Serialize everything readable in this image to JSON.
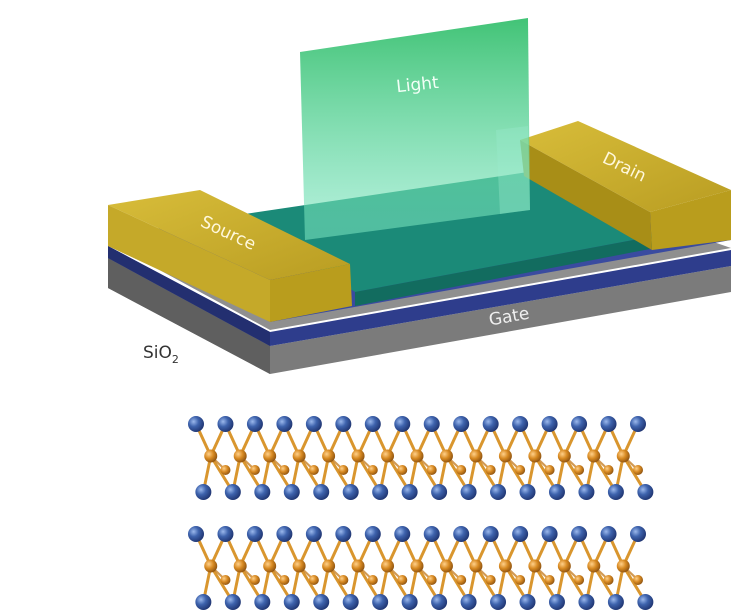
{
  "device": {
    "labels": {
      "light": "Light",
      "drain": "Drain",
      "source": "Source",
      "gate": "Gate",
      "substrate_main": "SiO",
      "substrate_sub": "2"
    },
    "colors": {
      "electrode_top": "#c9ad2a",
      "electrode_front": "#b79a1c",
      "electrode_side": "#8f7812",
      "channel_top": "#1b8a78",
      "channel_front": "#126c5f",
      "dielectric": "#2e3d8c",
      "gate_top": "#8a8a8a",
      "gate_front": "#767676",
      "gate_side": "#5a5a5a",
      "light_sheet": "#3fc77a"
    }
  },
  "lattice": {
    "layers": 2,
    "atoms_per_row": 16,
    "colors": {
      "chalcogen": "#3e63ad",
      "metal": "#d88a22",
      "bond": "#d9962e"
    }
  }
}
